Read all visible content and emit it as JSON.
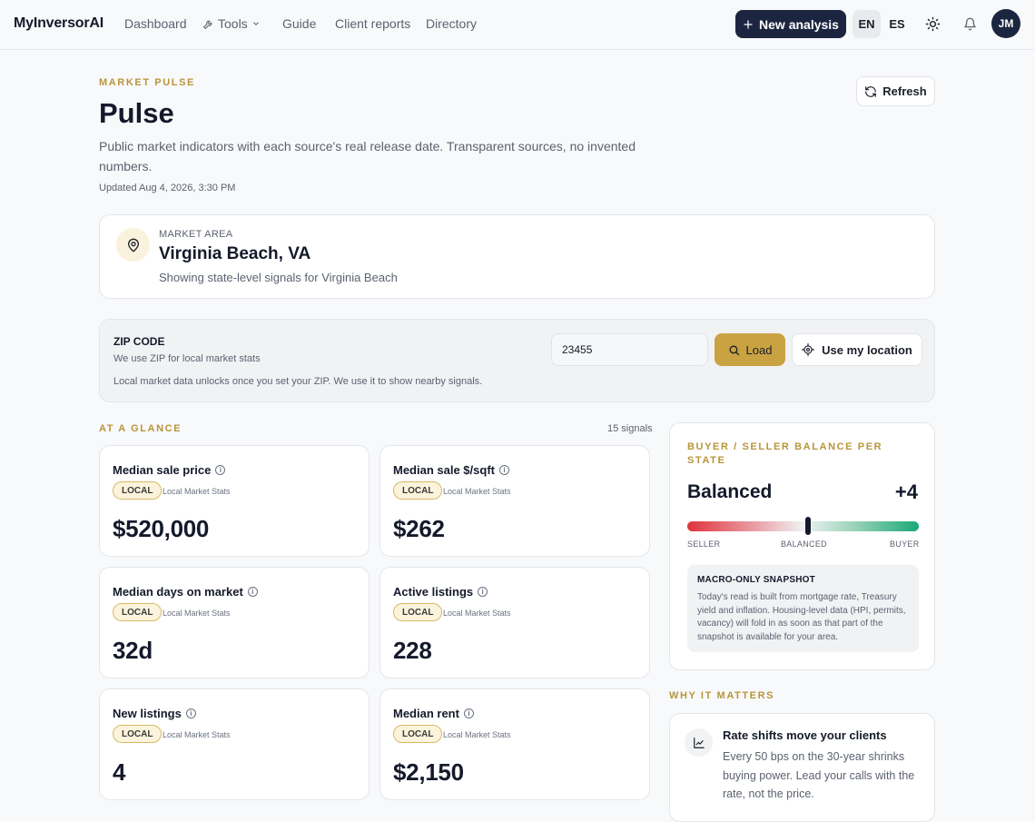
{
  "app": {
    "brand": "MyInversorAI"
  },
  "nav": {
    "items": [
      "Dashboard",
      "Tools",
      "Guide",
      "Client reports",
      "Directory"
    ]
  },
  "header": {
    "new_label": "New analysis",
    "lang_en": "EN",
    "lang_es": "ES",
    "avatar": "JM"
  },
  "page": {
    "eyebrow": "MARKET PULSE",
    "title": "Pulse",
    "subtitle": "Public market indicators with each source's real release date. Transparent sources, no invented numbers.",
    "updated": "Updated Aug 4, 2026, 3:30 PM",
    "refresh_label": "Refresh"
  },
  "area": {
    "label": "MARKET AREA",
    "city": "Virginia Beach, VA",
    "note": "Showing state-level signals for Virginia Beach"
  },
  "zip": {
    "title": "ZIP CODE",
    "sub": "We use ZIP for local market stats",
    "note": "Local market data unlocks once you set your ZIP. We use it to show nearby signals.",
    "value": "23455",
    "load_label": "Load",
    "location_label": "Use my location"
  },
  "glance": {
    "eyebrow": "AT A GLANCE",
    "count": "15 signals",
    "stats": [
      {
        "title": "Median sale price",
        "badge": "LOCAL",
        "source": "Local Market Stats",
        "value": "$520,000"
      },
      {
        "title": "Median sale $/sqft",
        "badge": "LOCAL",
        "source": "Local Market Stats",
        "value": "$262"
      },
      {
        "title": "Median days on market",
        "badge": "LOCAL",
        "source": "Local Market Stats",
        "value": "32d"
      },
      {
        "title": "Active listings",
        "badge": "LOCAL",
        "source": "Local Market Stats",
        "value": "228"
      },
      {
        "title": "New listings",
        "badge": "LOCAL",
        "source": "Local Market Stats",
        "value": "4"
      },
      {
        "title": "Median rent",
        "badge": "LOCAL",
        "source": "Local Market Stats",
        "value": "$2,150"
      }
    ]
  },
  "balance": {
    "eyebrow": "BUYER / SELLER BALANCE PER STATE",
    "state": "Balanced",
    "score": "+4",
    "position_percent": 52,
    "labels": {
      "seller": "SELLER",
      "balanced": "BALANCED",
      "buyer": "BUYER"
    },
    "macro_title": "MACRO-ONLY SNAPSHOT",
    "macro_text": "Today's read is built from mortgage rate, Treasury yield and inflation. Housing-level data (HPI, permits, vacancy) will fold in as soon as that part of the snapshot is available for your area."
  },
  "why": {
    "eyebrow": "WHY IT MATTERS",
    "title": "Rate shifts move your clients",
    "text": "Every 50 bps on the 30-year shrinks buying power. Lead your calls with the rate, not the price."
  }
}
